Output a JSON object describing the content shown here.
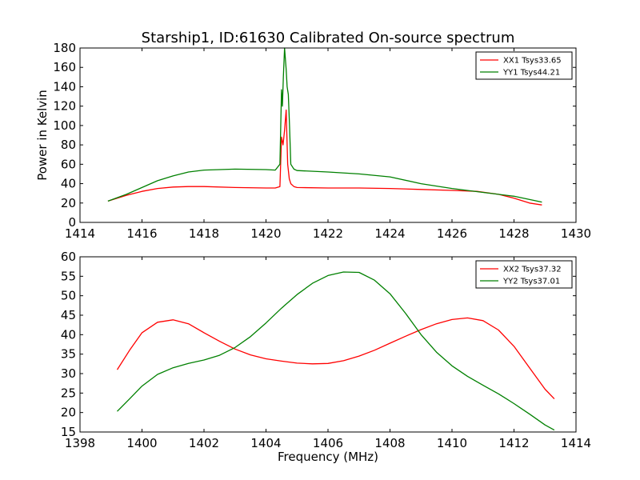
{
  "chart_data": [
    {
      "type": "line",
      "title": "Starship1, ID:61630 Calibrated On-source spectrum",
      "xlabel": "",
      "ylabel": "Power in Kelvin",
      "xlim": [
        1414,
        1430
      ],
      "ylim": [
        0,
        180
      ],
      "xticks": [
        1414,
        1416,
        1418,
        1420,
        1422,
        1424,
        1426,
        1428,
        1430
      ],
      "yticks": [
        0,
        20,
        40,
        60,
        80,
        100,
        120,
        140,
        160,
        180
      ],
      "grid": false,
      "legend_position": "top-right",
      "series": [
        {
          "name": "XX1 Tsys33.65",
          "color": "#ff0000",
          "x": [
            1414.9,
            1415.5,
            1416.0,
            1416.5,
            1417.0,
            1417.5,
            1418.0,
            1419.0,
            1420.0,
            1420.3,
            1420.45,
            1420.5,
            1420.55,
            1420.6,
            1420.65,
            1420.7,
            1420.75,
            1420.8,
            1420.9,
            1421.0,
            1422.0,
            1423.0,
            1424.0,
            1425.0,
            1426.0,
            1426.8,
            1427.5,
            1428.0,
            1428.5,
            1428.9
          ],
          "y": [
            22,
            28,
            32,
            35,
            36.5,
            37,
            37,
            36,
            35.5,
            35.5,
            37,
            88,
            80,
            95,
            116,
            60,
            45,
            40,
            37,
            36,
            35.5,
            35.5,
            35,
            34,
            33,
            32,
            29,
            25,
            20,
            18
          ]
        },
        {
          "name": "YY1 Tsys44.21",
          "color": "#008000",
          "x": [
            1414.9,
            1415.5,
            1416.0,
            1416.5,
            1417.0,
            1417.5,
            1418.0,
            1419.0,
            1420.0,
            1420.3,
            1420.45,
            1420.5,
            1420.53,
            1420.56,
            1420.6,
            1420.65,
            1420.68,
            1420.72,
            1420.76,
            1420.8,
            1420.9,
            1421.0,
            1422.0,
            1423.0,
            1424.0,
            1425.0,
            1426.0,
            1427.0,
            1428.0,
            1428.9
          ],
          "y": [
            22,
            29,
            36,
            43,
            48,
            52,
            54,
            55,
            54.5,
            54,
            60,
            137,
            120,
            150,
            180,
            158,
            140,
            132,
            100,
            60,
            55,
            53.5,
            52,
            50,
            47,
            40,
            35,
            31,
            27,
            21
          ]
        }
      ]
    },
    {
      "type": "line",
      "title": "",
      "xlabel": "Frequency (MHz)",
      "ylabel": "",
      "xlim": [
        1398,
        1414
      ],
      "ylim": [
        15,
        60
      ],
      "xticks": [
        1398,
        1400,
        1402,
        1404,
        1406,
        1408,
        1410,
        1412,
        1414
      ],
      "yticks": [
        15,
        20,
        25,
        30,
        35,
        40,
        45,
        50,
        55,
        60
      ],
      "grid": false,
      "legend_position": "top-right",
      "series": [
        {
          "name": "XX2 Tsys37.32",
          "color": "#ff0000",
          "x": [
            1399.2,
            1399.6,
            1400.0,
            1400.5,
            1401.0,
            1401.5,
            1402.0,
            1402.5,
            1403.0,
            1403.5,
            1404.0,
            1404.5,
            1405.0,
            1405.5,
            1406.0,
            1406.5,
            1407.0,
            1407.5,
            1408.0,
            1408.5,
            1409.0,
            1409.5,
            1410.0,
            1410.5,
            1411.0,
            1411.5,
            1412.0,
            1412.5,
            1413.0,
            1413.3
          ],
          "y": [
            31,
            36,
            40.5,
            43.2,
            43.8,
            42.8,
            40.5,
            38.3,
            36.3,
            34.8,
            33.8,
            33.2,
            32.7,
            32.5,
            32.6,
            33.3,
            34.5,
            36,
            37.8,
            39.6,
            41.3,
            42.8,
            43.9,
            44.3,
            43.6,
            41.2,
            37,
            31.5,
            26,
            23.5
          ]
        },
        {
          "name": "YY2 Tsys37.01",
          "color": "#008000",
          "x": [
            1399.2,
            1399.6,
            1400.0,
            1400.5,
            1401.0,
            1401.5,
            1402.0,
            1402.5,
            1403.0,
            1403.5,
            1404.0,
            1404.5,
            1405.0,
            1405.5,
            1406.0,
            1406.5,
            1407.0,
            1407.5,
            1408.0,
            1408.5,
            1409.0,
            1409.5,
            1410.0,
            1410.5,
            1411.0,
            1411.5,
            1412.0,
            1412.5,
            1413.0,
            1413.3
          ],
          "y": [
            20.3,
            23.5,
            26.8,
            29.8,
            31.5,
            32.6,
            33.5,
            34.7,
            36.7,
            39.5,
            43,
            46.8,
            50.3,
            53.2,
            55.2,
            56.1,
            56,
            54,
            50.5,
            45.5,
            40,
            35.5,
            32,
            29.3,
            27,
            24.8,
            22.3,
            19.6,
            16.8,
            15.5
          ]
        }
      ]
    }
  ]
}
